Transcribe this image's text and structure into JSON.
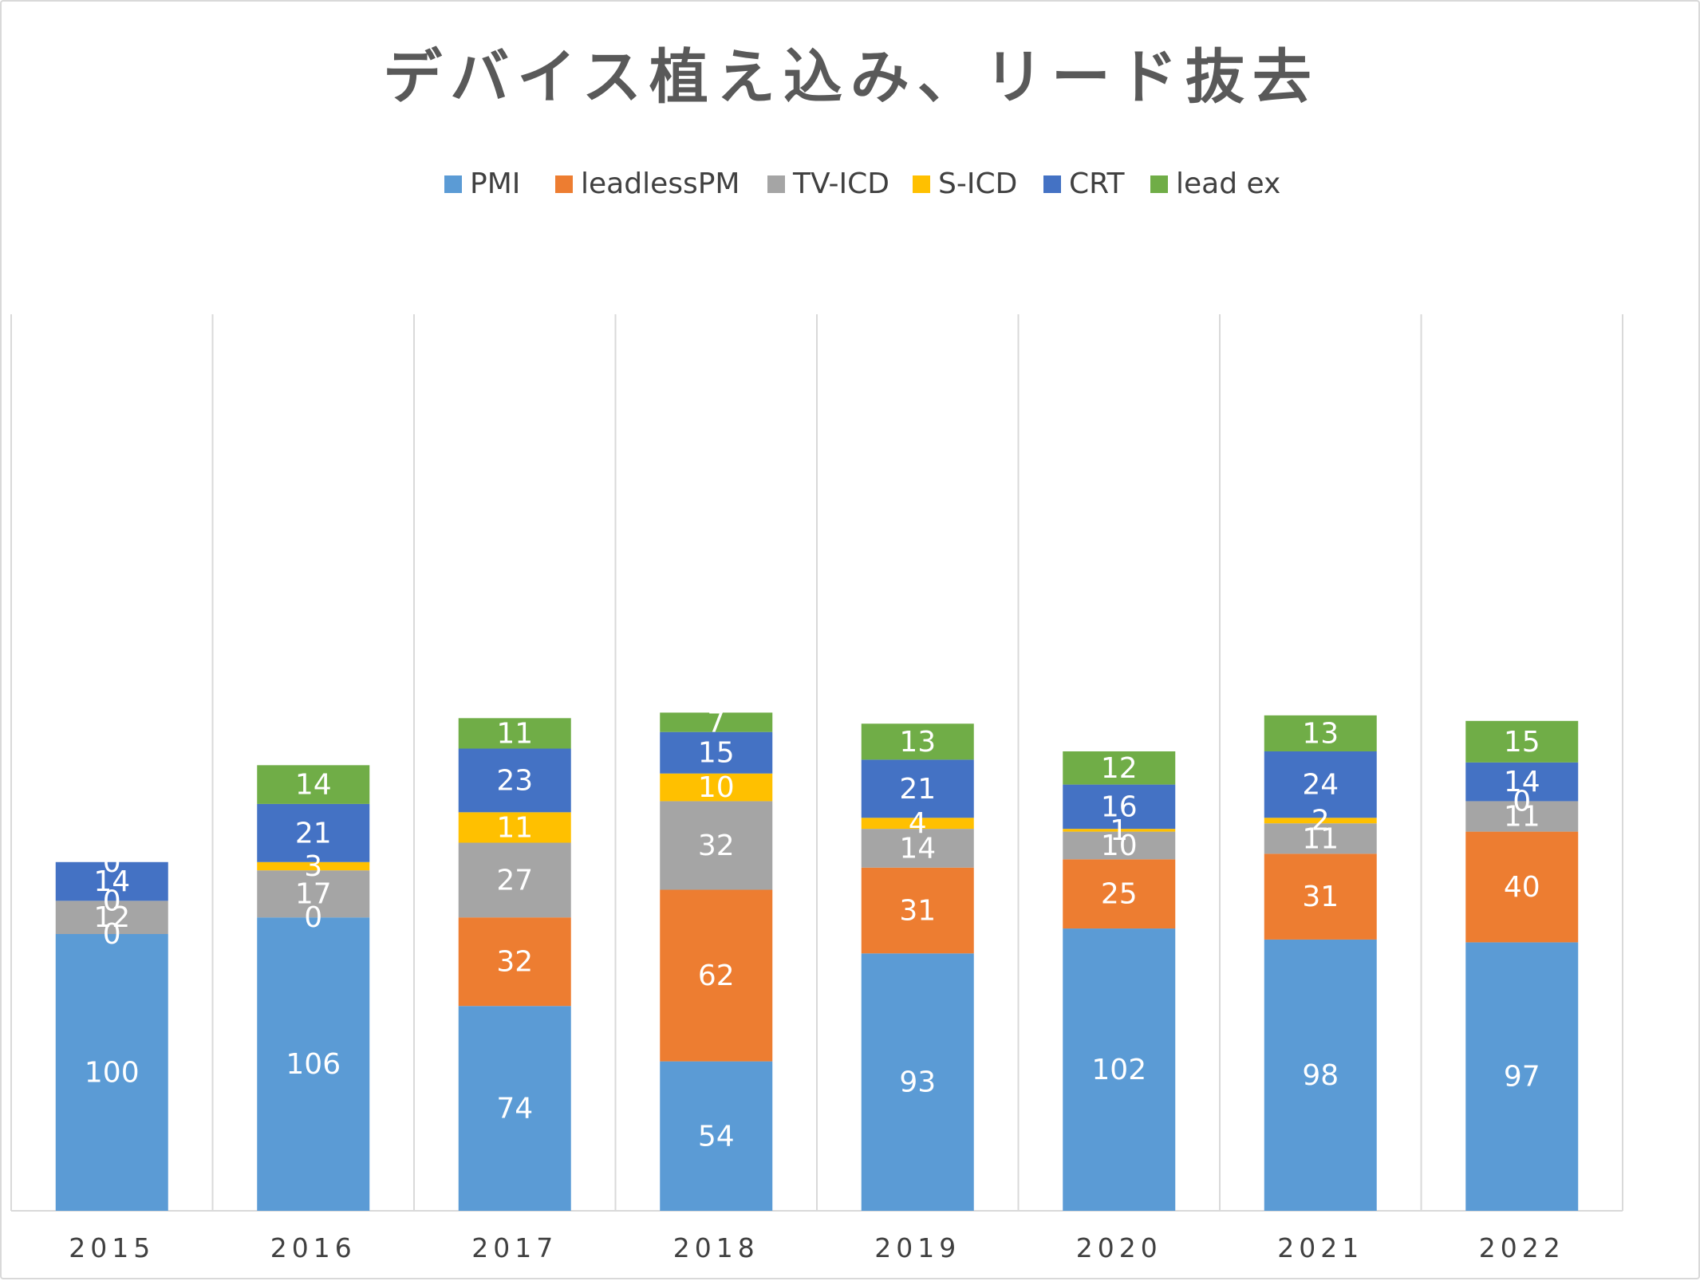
{
  "chart_data": {
    "type": "bar",
    "stacked": true,
    "title": "デバイス植え込み、リード抜去",
    "categories": [
      "2015",
      "2016",
      "2017",
      "2018",
      "2019",
      "2020",
      "2021",
      "2022"
    ],
    "series": [
      {
        "name": "PMI",
        "color": "#5B9BD5",
        "values": [
          100,
          106,
          74,
          54,
          93,
          102,
          98,
          97
        ]
      },
      {
        "name": "leadlessPM",
        "color": "#ED7D31",
        "values": [
          0,
          0,
          32,
          62,
          31,
          25,
          31,
          40
        ]
      },
      {
        "name": "TV-ICD",
        "color": "#A5A5A5",
        "values": [
          12,
          17,
          27,
          32,
          14,
          10,
          11,
          11
        ]
      },
      {
        "name": "S-ICD",
        "color": "#FFC000",
        "values": [
          0,
          3,
          11,
          10,
          4,
          1,
          2,
          0
        ]
      },
      {
        "name": "CRT",
        "color": "#4472C4",
        "values": [
          14,
          21,
          23,
          15,
          21,
          16,
          24,
          14
        ]
      },
      {
        "name": "lead ex",
        "color": "#70AD47",
        "values": [
          0,
          14,
          11,
          7,
          13,
          12,
          13,
          15
        ]
      }
    ],
    "ylim": [
      0,
      200
    ],
    "legend": "top",
    "grid": "vertical category separators",
    "data_labels": true
  }
}
